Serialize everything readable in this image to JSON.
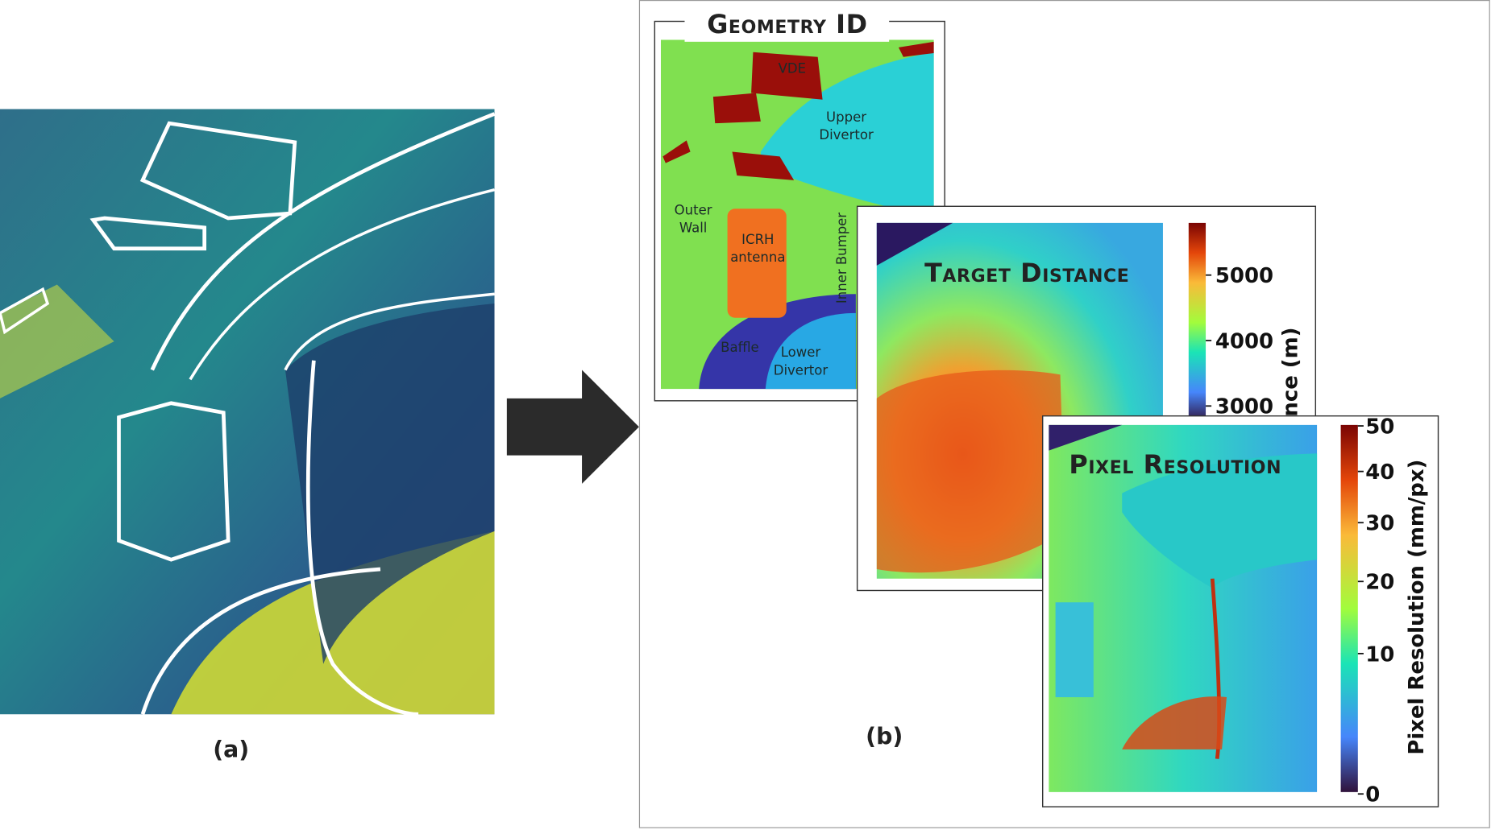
{
  "panel_a": {
    "label": "(a)"
  },
  "panel_b": {
    "label": "(b)",
    "geometry_id": {
      "title": "Geometry ID",
      "regions": [
        [
          "VDE"
        ],
        [
          "Upper",
          "Divertor"
        ],
        [
          "Outer",
          "Wall"
        ],
        [
          "ICRH",
          "antenna"
        ],
        [
          "Inner Bumper"
        ],
        [
          "Baffle"
        ],
        [
          "Lower",
          "Divertor"
        ]
      ]
    },
    "target_distance": {
      "title": "Target Distance",
      "colorbar_label": "Distance (m)",
      "colorbar_ticks": [
        "5000",
        "4000",
        "3000"
      ]
    },
    "pixel_resolution": {
      "title": "Pixel Resolution",
      "colorbar_label": "Pixel Resolution (mm/px)",
      "colorbar_ticks": [
        "50",
        "40",
        "30",
        "20",
        "10",
        "0"
      ]
    }
  }
}
